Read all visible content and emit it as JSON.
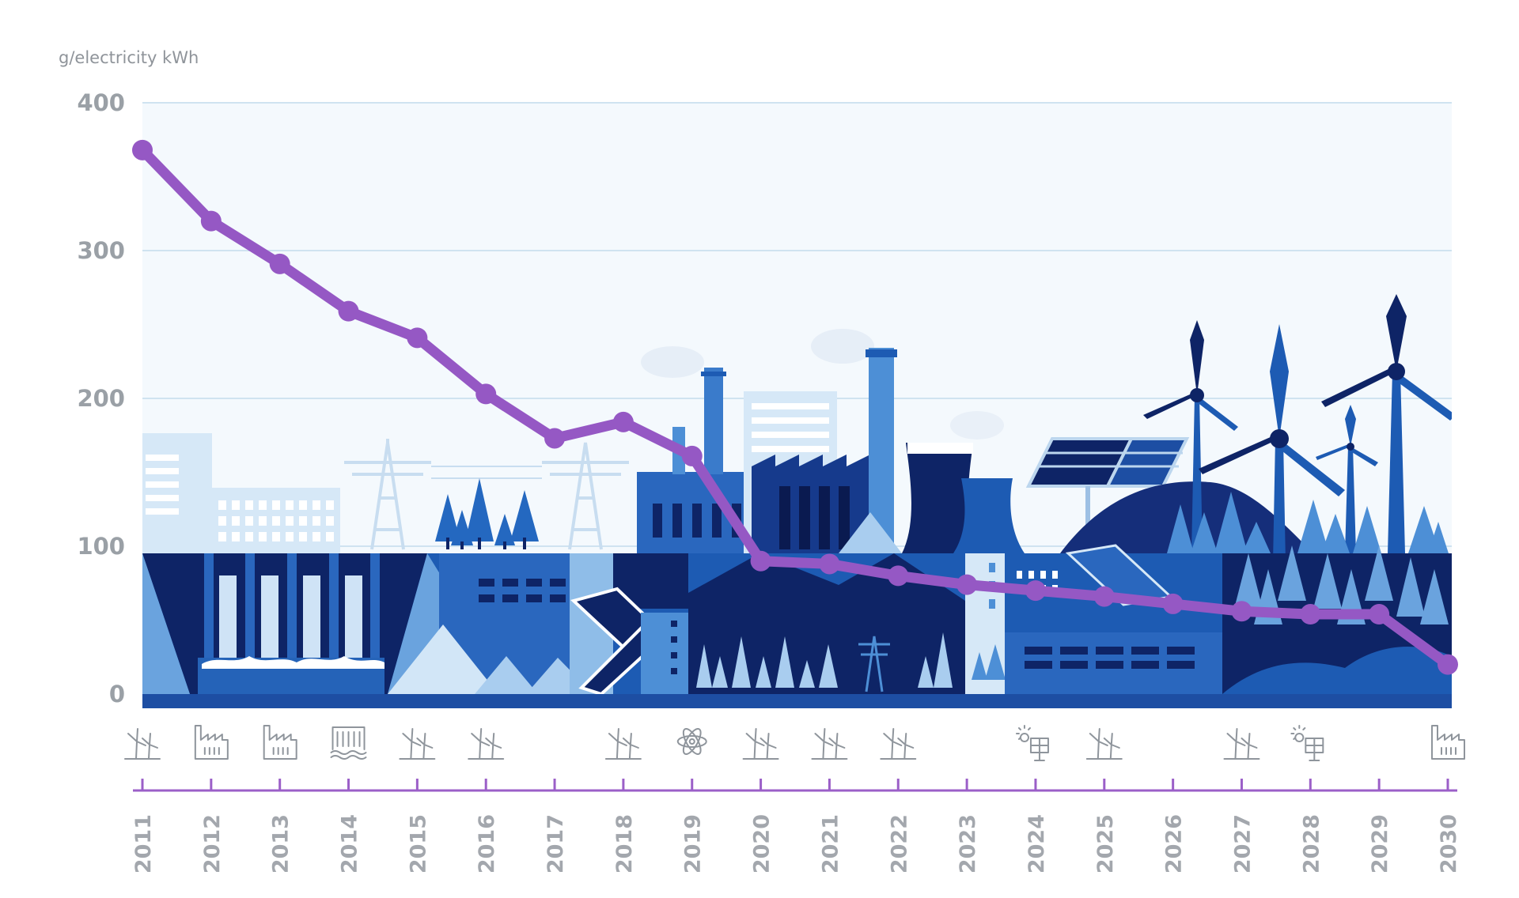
{
  "chart_data": {
    "type": "line",
    "title": "",
    "ylabel": "g/electricity kWh",
    "xlabel": "",
    "ylim": [
      0,
      400
    ],
    "yticks": [
      0,
      100,
      200,
      300,
      400
    ],
    "grid": true,
    "x": [
      "2011",
      "2012",
      "2013",
      "2014",
      "2015",
      "2016",
      "2017",
      "2018",
      "2019",
      "2020",
      "2021",
      "2022",
      "2023",
      "2024",
      "2025",
      "2026",
      "2027",
      "2028",
      "2029",
      "2030"
    ],
    "series": [
      {
        "values": [
          368,
          320,
          291,
          259,
          241,
          203,
          173,
          184,
          161,
          90,
          88,
          80,
          74,
          70,
          66,
          61,
          56,
          54,
          54,
          20
        ]
      }
    ],
    "events": [
      {
        "year": "2011",
        "icon": "wind-turbine-icon"
      },
      {
        "year": "2012",
        "icon": "factory-icon"
      },
      {
        "year": "2013",
        "icon": "factory-icon"
      },
      {
        "year": "2014",
        "icon": "hydro-plant-icon"
      },
      {
        "year": "2015",
        "icon": "wind-turbine-icon"
      },
      {
        "year": "2016",
        "icon": "wind-turbine-icon"
      },
      {
        "year": "2018",
        "icon": "wind-turbine-icon"
      },
      {
        "year": "2019",
        "icon": "atom-icon"
      },
      {
        "year": "2020",
        "icon": "wind-turbine-icon"
      },
      {
        "year": "2021",
        "icon": "wind-turbine-icon"
      },
      {
        "year": "2022",
        "icon": "wind-turbine-icon"
      },
      {
        "year": "2024",
        "icon": "solar-panel-icon"
      },
      {
        "year": "2025",
        "icon": "wind-turbine-icon"
      },
      {
        "year": "2027",
        "icon": "wind-turbine-icon"
      },
      {
        "year": "2028",
        "icon": "solar-panel-icon"
      },
      {
        "year": "2030",
        "icon": "factory-icon"
      }
    ],
    "colors": {
      "line": "#9558c4",
      "timeline": "#9b5fc8",
      "plot_bg": "#f4f9fd",
      "grid": "#cfe3f0",
      "navy": "#0e2466",
      "blue": "#1d5bb3",
      "mid_blue": "#4d8fd6",
      "light_blue": "#a9cdef",
      "pale_blue": "#d9eaf8"
    }
  }
}
